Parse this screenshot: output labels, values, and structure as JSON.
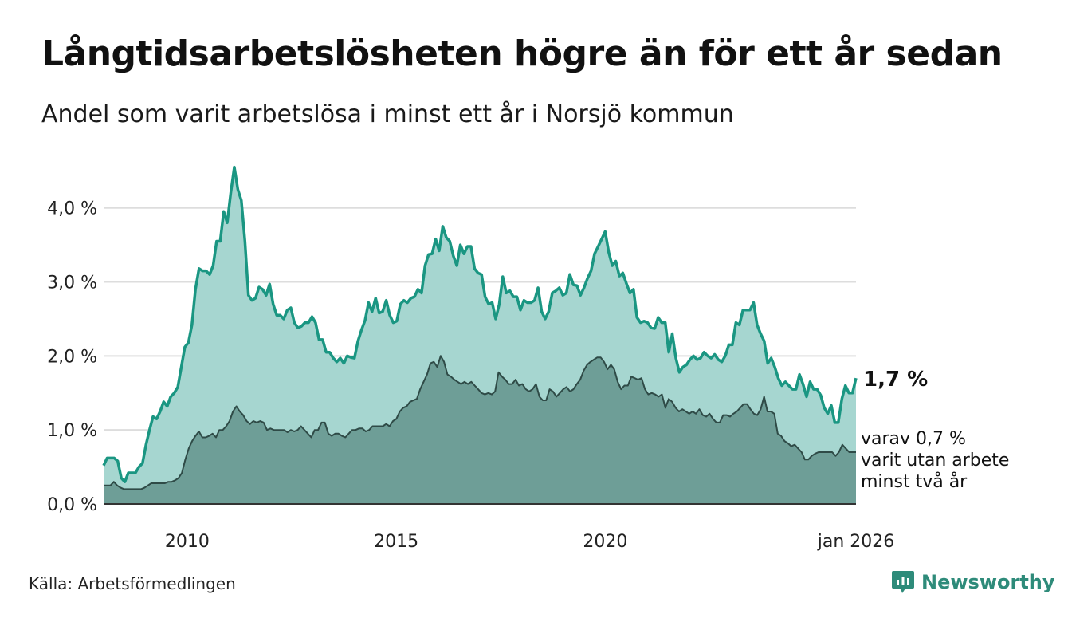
{
  "header": {
    "title": "Långtidsarbetslösheten högre än för ett år sedan",
    "subtitle": "Andel som varit arbetslösa i minst ett år i Norsjö kommun"
  },
  "footer": {
    "source": "Källa: Arbetsförmedlingen",
    "brand": "Newsworthy"
  },
  "colors": {
    "long_line": "#1a9682",
    "long_fill": "#a6d6d0",
    "two_line": "#2f4b47",
    "two_fill": "#6e9e97",
    "grid": "#dddddd",
    "axis": "#333333",
    "brand": "#2e8b7a"
  },
  "chart_data": {
    "type": "area",
    "x_start_year": 2008.0,
    "x_end_year": 2026.0,
    "xlim": [
      2008.0,
      2026.0
    ],
    "ylim": [
      0,
      4.6
    ],
    "grid": true,
    "yticks": [
      {
        "value": 0,
        "label": "0,0 %"
      },
      {
        "value": 1,
        "label": "1,0 %"
      },
      {
        "value": 2,
        "label": "2,0 %"
      },
      {
        "value": 3,
        "label": "3,0 %"
      },
      {
        "value": 4,
        "label": "4,0 %"
      }
    ],
    "xticks": [
      {
        "value": 2010,
        "label": "2010"
      },
      {
        "value": 2015,
        "label": "2015"
      },
      {
        "value": 2020,
        "label": "2020"
      },
      {
        "value": 2026.0,
        "label": "jan 2026"
      }
    ],
    "series": [
      {
        "name": "Arbetslösa minst ett år",
        "values": [
          0.52,
          0.62,
          0.62,
          0.62,
          0.58,
          0.35,
          0.3,
          0.42,
          0.42,
          0.42,
          0.5,
          0.55,
          0.8,
          1.0,
          1.18,
          1.15,
          1.25,
          1.38,
          1.32,
          1.45,
          1.5,
          1.58,
          1.85,
          2.12,
          2.18,
          2.42,
          2.9,
          3.18,
          3.15,
          3.15,
          3.1,
          3.22,
          3.55,
          3.55,
          3.95,
          3.8,
          4.2,
          4.55,
          4.25,
          4.1,
          3.55,
          2.82,
          2.75,
          2.78,
          2.93,
          2.9,
          2.82,
          2.97,
          2.7,
          2.55,
          2.55,
          2.5,
          2.62,
          2.65,
          2.45,
          2.38,
          2.4,
          2.45,
          2.45,
          2.53,
          2.45,
          2.22,
          2.22,
          2.05,
          2.05,
          1.97,
          1.92,
          1.97,
          1.9,
          2.0,
          1.98,
          1.97,
          2.2,
          2.35,
          2.48,
          2.72,
          2.6,
          2.78,
          2.58,
          2.6,
          2.75,
          2.55,
          2.45,
          2.47,
          2.7,
          2.75,
          2.72,
          2.78,
          2.8,
          2.9,
          2.85,
          3.22,
          3.37,
          3.38,
          3.58,
          3.42,
          3.75,
          3.6,
          3.55,
          3.35,
          3.22,
          3.5,
          3.38,
          3.48,
          3.48,
          3.18,
          3.12,
          3.1,
          2.8,
          2.7,
          2.72,
          2.5,
          2.7,
          3.07,
          2.85,
          2.88,
          2.8,
          2.8,
          2.62,
          2.75,
          2.72,
          2.72,
          2.75,
          2.92,
          2.6,
          2.5,
          2.6,
          2.85,
          2.88,
          2.92,
          2.82,
          2.85,
          3.1,
          2.96,
          2.95,
          2.82,
          2.92,
          3.05,
          3.15,
          3.38,
          3.48,
          3.58,
          3.68,
          3.4,
          3.22,
          3.28,
          3.08,
          3.12,
          2.98,
          2.85,
          2.9,
          2.52,
          2.45,
          2.47,
          2.45,
          2.38,
          2.37,
          2.52,
          2.45,
          2.45,
          2.05,
          2.3,
          1.97,
          1.78,
          1.85,
          1.88,
          1.95,
          2.0,
          1.95,
          1.97,
          2.05,
          2.0,
          1.97,
          2.02,
          1.95,
          1.92,
          2.0,
          2.15,
          2.15,
          2.45,
          2.42,
          2.62,
          2.62,
          2.62,
          2.72,
          2.42,
          2.3,
          2.2,
          1.9,
          1.97,
          1.85,
          1.7,
          1.6,
          1.65,
          1.6,
          1.55,
          1.55,
          1.75,
          1.62,
          1.45,
          1.65,
          1.55,
          1.55,
          1.47,
          1.3,
          1.22,
          1.33,
          1.1,
          1.1,
          1.42,
          1.6,
          1.5,
          1.5,
          1.7
        ]
      },
      {
        "name": "varav minst två år",
        "values": [
          0.25,
          0.25,
          0.25,
          0.3,
          0.25,
          0.22,
          0.2,
          0.2,
          0.2,
          0.2,
          0.2,
          0.2,
          0.22,
          0.25,
          0.28,
          0.28,
          0.28,
          0.28,
          0.28,
          0.3,
          0.3,
          0.32,
          0.35,
          0.42,
          0.6,
          0.75,
          0.85,
          0.92,
          0.98,
          0.9,
          0.9,
          0.92,
          0.95,
          0.9,
          1.0,
          1.0,
          1.05,
          1.12,
          1.25,
          1.32,
          1.25,
          1.2,
          1.12,
          1.08,
          1.12,
          1.1,
          1.12,
          1.1,
          1.0,
          1.02,
          1.0,
          1.0,
          1.0,
          1.0,
          0.97,
          1.0,
          0.98,
          1.0,
          1.05,
          1.0,
          0.95,
          0.9,
          1.0,
          1.0,
          1.1,
          1.1,
          0.95,
          0.92,
          0.95,
          0.95,
          0.92,
          0.9,
          0.95,
          1.0,
          1.0,
          1.02,
          1.02,
          0.98,
          1.0,
          1.05,
          1.05,
          1.05,
          1.05,
          1.08,
          1.05,
          1.12,
          1.15,
          1.25,
          1.3,
          1.32,
          1.38,
          1.4,
          1.42,
          1.55,
          1.65,
          1.75,
          1.9,
          1.92,
          1.85,
          2.0,
          1.92,
          1.75,
          1.72,
          1.68,
          1.65,
          1.62,
          1.65,
          1.62,
          1.65,
          1.6,
          1.55,
          1.5,
          1.48,
          1.5,
          1.48,
          1.52,
          1.78,
          1.72,
          1.68,
          1.62,
          1.62,
          1.68,
          1.6,
          1.62,
          1.55,
          1.52,
          1.55,
          1.62,
          1.45,
          1.4,
          1.4,
          1.55,
          1.52,
          1.45,
          1.5,
          1.55,
          1.58,
          1.52,
          1.55,
          1.62,
          1.68,
          1.8,
          1.88,
          1.92,
          1.95,
          1.98,
          1.98,
          1.92,
          1.82,
          1.88,
          1.82,
          1.65,
          1.55,
          1.6,
          1.6,
          1.72,
          1.7,
          1.68,
          1.7,
          1.55,
          1.48,
          1.5,
          1.48,
          1.45,
          1.48,
          1.3,
          1.42,
          1.38,
          1.3,
          1.25,
          1.28,
          1.25,
          1.22,
          1.25,
          1.22,
          1.28,
          1.2,
          1.18,
          1.22,
          1.15,
          1.1,
          1.1,
          1.2,
          1.2,
          1.18,
          1.22,
          1.25,
          1.3,
          1.35,
          1.35,
          1.28,
          1.22,
          1.2,
          1.28,
          1.45,
          1.25,
          1.25,
          1.22,
          0.95,
          0.92,
          0.85,
          0.82,
          0.78,
          0.8,
          0.75,
          0.7,
          0.6,
          0.6,
          0.65,
          0.68,
          0.7,
          0.7,
          0.7,
          0.7,
          0.7,
          0.65,
          0.7,
          0.8,
          0.75,
          0.7,
          0.7,
          0.7
        ]
      }
    ],
    "annotations": {
      "latest_main": "1,7 %",
      "latest_sub": [
        "varav 0,7 %",
        "varit utan arbete",
        "minst två år"
      ]
    }
  }
}
